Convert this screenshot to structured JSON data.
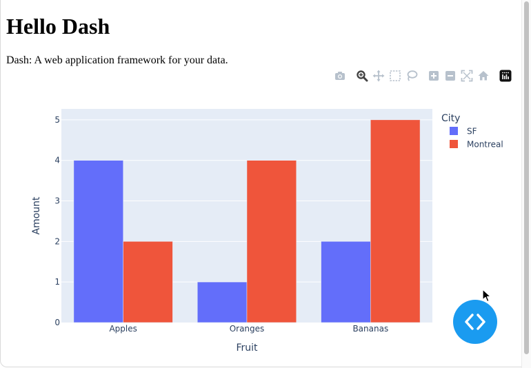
{
  "page": {
    "title": "Hello Dash",
    "subtitle": "Dash: A web application framework for your data."
  },
  "modebar": {
    "buttons": [
      {
        "name": "camera-icon"
      },
      {
        "name": "zoom-icon"
      },
      {
        "name": "pan-icon"
      },
      {
        "name": "box-select-icon"
      },
      {
        "name": "lasso-select-icon"
      },
      {
        "name": "zoom-in-icon"
      },
      {
        "name": "zoom-out-icon"
      },
      {
        "name": "autoscale-icon"
      },
      {
        "name": "reset-axes-icon"
      },
      {
        "name": "plotly-logo-icon"
      }
    ]
  },
  "chart_data": {
    "type": "bar",
    "barmode": "group",
    "categories": [
      "Apples",
      "Oranges",
      "Bananas"
    ],
    "series": [
      {
        "name": "SF",
        "values": [
          4,
          1,
          2
        ],
        "color": "#636efa"
      },
      {
        "name": "Montreal",
        "values": [
          2,
          4,
          5
        ],
        "color": "#ef553b"
      }
    ],
    "xlabel": "Fruit",
    "ylabel": "Amount",
    "ylim": [
      0,
      5.27
    ],
    "yticks": [
      0,
      1,
      2,
      3,
      4,
      5
    ],
    "legend_title": "City",
    "legend_position": "top-right",
    "plot_background": "#e5ecf6",
    "grid": true
  },
  "fab": {
    "name": "code-brackets-icon",
    "color": "#1a9bf0"
  }
}
